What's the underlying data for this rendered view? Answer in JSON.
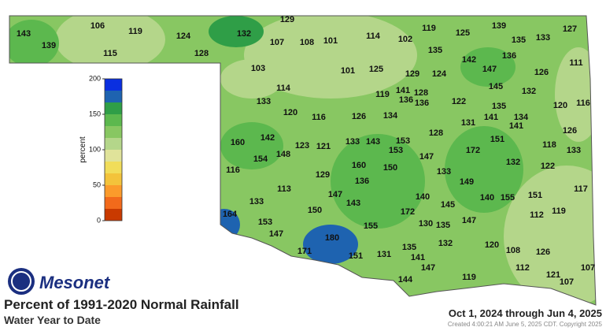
{
  "map": {
    "title": "Percent of 1991-2020 Normal Rainfall",
    "subtitle": "Water Year to Date",
    "date_range": "Oct 1, 2024 through Jun 4, 2025",
    "credit": "Created 4:00:21 AM June 5, 2025 CDT. Copyright 2025",
    "logo": "Mesonet",
    "legend": {
      "label": "percent",
      "lim": [
        0,
        200
      ],
      "ticks": [
        0,
        50,
        100,
        150,
        200
      ],
      "colors": [
        "#c93a00",
        "#f26a1b",
        "#fb9b2b",
        "#f3c33b",
        "#f1dd5a",
        "#e0e39a",
        "#b4d68a",
        "#88c762",
        "#5cb84e",
        "#2f9e47",
        "#1e63b0",
        "#0a2fe0"
      ]
    },
    "stations": [
      143,
      139,
      106,
      119,
      115,
      124,
      128,
      132,
      129,
      107,
      108,
      101,
      114,
      102,
      119,
      125,
      139,
      135,
      133,
      127,
      135,
      142,
      136,
      147,
      111,
      103,
      101,
      125,
      129,
      124,
      126,
      114,
      119,
      141,
      128,
      136,
      136,
      122,
      145,
      132,
      120,
      116,
      133,
      120,
      116,
      126,
      134,
      135,
      141,
      134,
      141,
      131,
      128,
      126,
      160,
      142,
      123,
      121,
      133,
      143,
      153,
      151,
      118,
      133,
      154,
      148,
      153,
      172,
      147,
      116,
      129,
      160,
      150,
      133,
      132,
      122,
      136,
      149,
      113,
      147,
      140,
      140,
      155,
      151,
      117,
      133,
      143,
      145,
      150,
      172,
      112,
      119,
      164,
      153,
      155,
      130,
      135,
      147,
      147,
      180,
      132,
      120,
      108,
      126,
      171,
      151,
      131,
      135,
      141,
      112,
      147,
      107,
      144,
      119,
      121,
      107
    ]
  }
}
